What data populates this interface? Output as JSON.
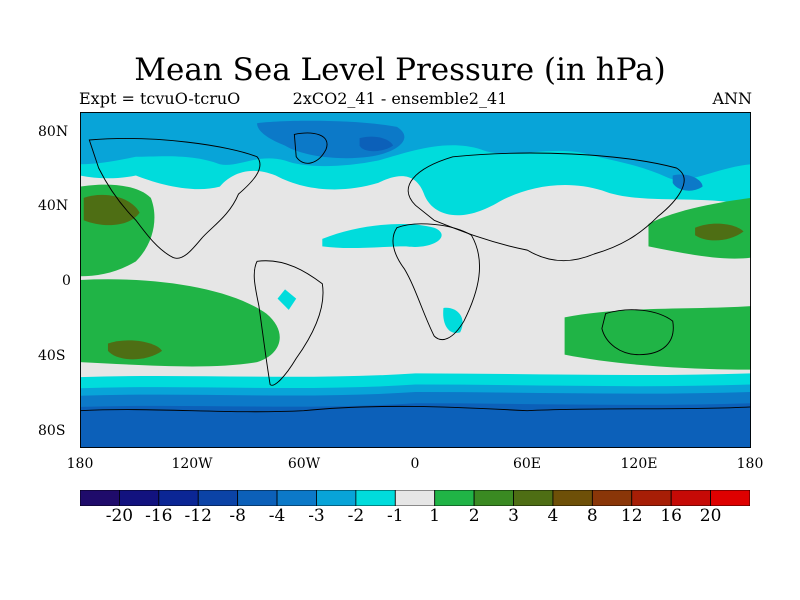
{
  "figure": {
    "title": "Mean Sea Level Pressure (in hPa)",
    "subtitle_left": "Expt = tcvuO-tcruO",
    "subtitle_center": "2xCO2_41 - ensemble2_41",
    "subtitle_right": "ANN"
  },
  "map": {
    "projection": "cylindrical-equidistant",
    "lon_range": [
      -180,
      180
    ],
    "lat_range": [
      -90,
      90
    ],
    "x_ticks": [
      "180",
      "120W",
      "60W",
      "0",
      "60E",
      "120E",
      "180"
    ],
    "y_ticks": [
      "80N",
      "40N",
      "0",
      "40S",
      "80S"
    ],
    "coastlines": true,
    "background_color": "#e6e6e6"
  },
  "colorbar": {
    "labels": [
      "-20",
      "-16",
      "-12",
      "-8",
      "-4",
      "-3",
      "-2",
      "-1",
      "1",
      "2",
      "3",
      "4",
      "8",
      "12",
      "16",
      "20"
    ],
    "colors": [
      "#1f0b6b",
      "#12127f",
      "#0b2695",
      "#0b43a6",
      "#0c60b9",
      "#0c79c8",
      "#08a4d8",
      "#00dcdc",
      "#e6e6e6",
      "#20b446",
      "#3a8a22",
      "#4e6e14",
      "#6e5008",
      "#8a3608",
      "#a71e06",
      "#c60a06",
      "#de0000"
    ]
  },
  "chart_data": {
    "type": "heatmap",
    "title": "Mean Sea Level Pressure (in hPa)",
    "xlabel": "",
    "ylabel": "",
    "xlim": [
      -180,
      180
    ],
    "ylim": [
      -90,
      90
    ],
    "regions": [
      {
        "level": "-3 to -2",
        "description": "Arctic Ocean and central Arctic"
      },
      {
        "level": "-4 to -3",
        "description": "North Pole core"
      },
      {
        "level": "-2 to -1",
        "description": "North Pacific / North Atlantic high latitudes, Siberia"
      },
      {
        "level": "1 to 2",
        "description": "Subtropical North Pacific east and west, South Pacific, South Indian"
      },
      {
        "level": "2 to 3",
        "description": "Small cores near 30N 150W, 30N 160E, 35S 150W"
      },
      {
        "level": "-1 to 1",
        "description": "Tropics and midlatitudes"
      },
      {
        "level": "-2 to -1",
        "description": "Southern Ocean near 55S"
      },
      {
        "level": "-3 to -2",
        "description": "Southern Ocean 60S-70S"
      },
      {
        "level": "-4 to -3",
        "description": "Antarctica"
      }
    ]
  }
}
